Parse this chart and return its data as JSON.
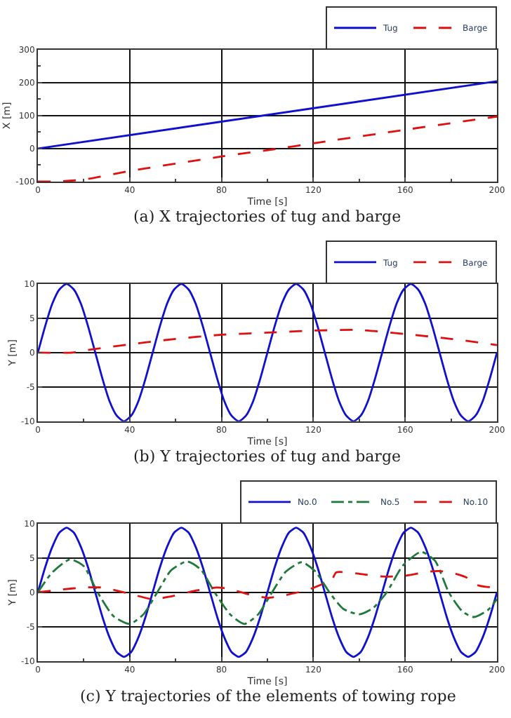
{
  "chart_data": [
    {
      "type": "line",
      "title": "(a) X trajectories of tug and barge",
      "xlabel": "Time [s]",
      "ylabel": "X [m]",
      "xlim": [
        0,
        200
      ],
      "xticks": [
        0,
        40,
        80,
        120,
        160,
        200
      ],
      "ylim": [
        -100,
        300
      ],
      "yticks": [
        -100,
        0,
        100,
        200,
        300
      ],
      "grid": true,
      "legend": "top right",
      "series": [
        {
          "name": "Tug",
          "color": "#1010d0",
          "line_style": "solid",
          "x": [
            0,
            200
          ],
          "values": [
            0,
            204
          ]
        },
        {
          "name": "Barge",
          "color": "#e01010",
          "line_style": "dashed",
          "x": [
            0,
            10,
            20,
            40,
            80,
            105,
            120,
            160,
            200
          ],
          "values": [
            -100,
            -99,
            -94,
            -68,
            -24,
            0,
            16,
            57,
            97
          ]
        }
      ]
    },
    {
      "type": "line",
      "title": "(b) Y trajectories of tug and barge",
      "xlabel": "Time [s]",
      "ylabel": "Y [m]",
      "xlim": [
        0,
        200
      ],
      "xticks": [
        0,
        40,
        80,
        120,
        160,
        200
      ],
      "ylim": [
        -10,
        10
      ],
      "yticks": [
        -10,
        -5,
        0,
        5,
        10
      ],
      "grid": true,
      "legend": "top right",
      "series": [
        {
          "name": "Tug",
          "color": "#1010d0",
          "line_style": "solid",
          "x": [
            0,
            3.125,
            6.25,
            9.375,
            12.5,
            15.625,
            18.75,
            21.875,
            25,
            28.125,
            31.25,
            34.375,
            37.5,
            40.625,
            43.75,
            46.875,
            50,
            53.125,
            56.25,
            59.375,
            62.5,
            65.625,
            68.75,
            71.875,
            75,
            78.125,
            81.25,
            84.375,
            87.5,
            90.625,
            93.75,
            96.875,
            100,
            103.125,
            106.25,
            109.375,
            112.5,
            115.625,
            118.75,
            121.875,
            125,
            128.125,
            131.25,
            134.375,
            137.5,
            140.625,
            143.75,
            146.875,
            150,
            153.125,
            156.25,
            159.375,
            162.5,
            165.625,
            168.75,
            171.875,
            175,
            178.125,
            181.25,
            184.375,
            187.5,
            190.625,
            193.75,
            196.875,
            200
          ],
          "values": [
            0,
            3.8,
            7.1,
            9.2,
            10,
            9.2,
            7.1,
            3.8,
            0,
            -3.8,
            -7.1,
            -9.2,
            -10,
            -9.2,
            -7.1,
            -3.8,
            0,
            3.8,
            7.1,
            9.2,
            10,
            9.2,
            7.1,
            3.8,
            0,
            -3.8,
            -7.1,
            -9.2,
            -10,
            -9.2,
            -7.1,
            -3.8,
            0,
            3.8,
            7.1,
            9.2,
            10,
            9.2,
            7.1,
            3.8,
            0,
            -3.8,
            -7.1,
            -9.2,
            -10,
            -9.2,
            -7.1,
            -3.8,
            0,
            3.8,
            7.1,
            9.2,
            10,
            9.2,
            7.1,
            3.8,
            0,
            -3.8,
            -7.1,
            -9.2,
            -10,
            -9.2,
            -7.1,
            -3.8,
            0
          ]
        },
        {
          "name": "Barge",
          "color": "#e01010",
          "line_style": "dashed",
          "x": [
            0,
            15,
            20,
            40,
            60,
            80,
            100,
            120,
            140,
            160,
            180,
            200
          ],
          "values": [
            0,
            0,
            0.3,
            1.2,
            2.0,
            2.6,
            2.9,
            3.2,
            3.3,
            2.7,
            2.0,
            1.1
          ]
        }
      ]
    },
    {
      "type": "line",
      "title": "(c) Y trajectories of the elements of towing rope",
      "xlabel": "Time [s]",
      "ylabel": "Y [m]",
      "xlim": [
        0,
        200
      ],
      "xticks": [
        0,
        40,
        80,
        120,
        160,
        200
      ],
      "ylim": [
        -10,
        10
      ],
      "yticks": [
        -10,
        -5,
        0,
        5,
        10
      ],
      "grid": true,
      "legend": "top right",
      "series": [
        {
          "name": "No.0",
          "color": "#1010d0",
          "line_style": "solid",
          "x": [
            0,
            3.125,
            6.25,
            9.375,
            12.5,
            15.625,
            18.75,
            21.875,
            25,
            28.125,
            31.25,
            34.375,
            37.5,
            40.625,
            43.75,
            46.875,
            50,
            53.125,
            56.25,
            59.375,
            62.5,
            65.625,
            68.75,
            71.875,
            75,
            78.125,
            81.25,
            84.375,
            87.5,
            90.625,
            93.75,
            96.875,
            100,
            103.125,
            106.25,
            109.375,
            112.5,
            115.625,
            118.75,
            121.875,
            125,
            128.125,
            131.25,
            134.375,
            137.5,
            140.625,
            143.75,
            146.875,
            150,
            153.125,
            156.25,
            159.375,
            162.5,
            165.625,
            168.75,
            171.875,
            175,
            178.125,
            181.25,
            184.375,
            187.5,
            190.625,
            193.75,
            196.875,
            200
          ],
          "values": [
            0,
            3.6,
            6.6,
            8.7,
            9.4,
            8.7,
            6.6,
            3.6,
            0,
            -3.6,
            -6.6,
            -8.7,
            -9.4,
            -8.7,
            -6.6,
            -3.6,
            0,
            3.6,
            6.6,
            8.7,
            9.4,
            8.7,
            6.6,
            3.6,
            0,
            -3.6,
            -6.6,
            -8.7,
            -9.4,
            -8.7,
            -6.6,
            -3.6,
            0,
            3.6,
            6.6,
            8.7,
            9.4,
            8.7,
            6.6,
            3.6,
            0,
            -3.6,
            -6.6,
            -8.7,
            -9.4,
            -8.7,
            -6.6,
            -3.6,
            0,
            3.6,
            6.6,
            8.7,
            9.4,
            8.7,
            6.6,
            3.6,
            0,
            -3.6,
            -6.6,
            -8.7,
            -9.4,
            -8.7,
            -6.6,
            -3.6,
            0
          ]
        },
        {
          "name": "No.5",
          "color": "#1f7a3a",
          "line_style": "dashdot",
          "x": [
            0,
            6,
            14,
            20,
            26,
            33,
            40,
            46,
            52,
            58,
            65,
            71,
            77,
            84,
            90,
            96,
            102,
            108,
            115,
            121,
            127,
            133,
            140,
            146,
            152,
            159,
            167,
            173,
            179,
            185,
            190,
            196,
            200
          ],
          "values": [
            0,
            2.8,
            4.8,
            3.8,
            0,
            -3.5,
            -4.6,
            -3.2,
            0,
            3.2,
            4.5,
            3.3,
            0,
            -3.3,
            -4.6,
            -3.2,
            0,
            3.0,
            4.4,
            3.0,
            0,
            -2.4,
            -3.2,
            -2.3,
            0,
            3.9,
            5.9,
            4.6,
            0,
            -2.8,
            -3.6,
            -2.6,
            -1.0
          ]
        },
        {
          "name": "No.10",
          "color": "#e01010",
          "line_style": "dashed",
          "x": [
            0,
            10,
            20,
            28,
            35,
            40,
            50,
            58,
            68,
            78,
            83,
            92,
            100,
            108,
            118,
            124,
            128,
            130,
            140,
            150,
            160,
            170,
            175,
            182,
            187,
            190,
            195,
            200
          ],
          "values": [
            0,
            0.4,
            0.7,
            0.7,
            0.2,
            -0.2,
            -1.0,
            -0.6,
            0.2,
            0.7,
            0.5,
            -0.3,
            -0.8,
            -0.4,
            0.4,
            1.2,
            1.8,
            2.9,
            2.7,
            2.3,
            2.4,
            3.0,
            3.1,
            2.7,
            2.1,
            1.2,
            0.8,
            0.7
          ]
        }
      ]
    }
  ]
}
